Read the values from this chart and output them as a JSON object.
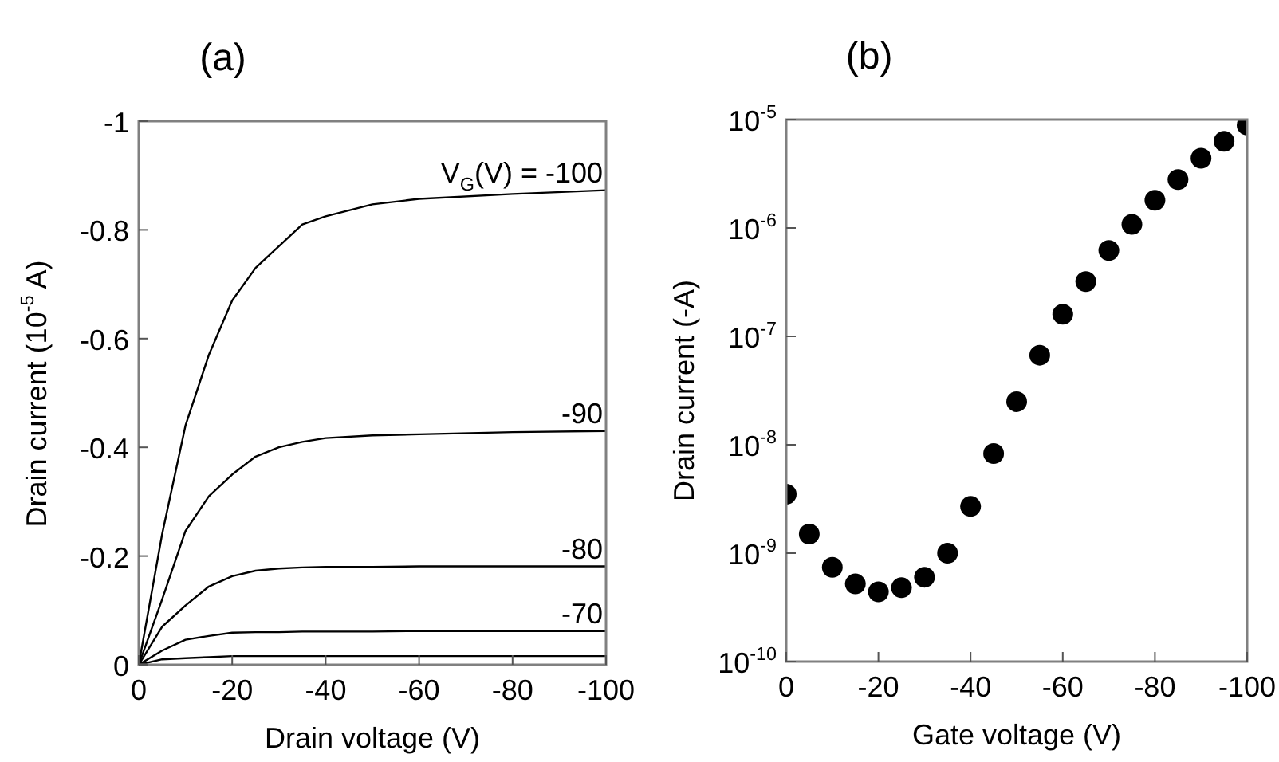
{
  "chart_data": [
    {
      "type": "line",
      "title": "(a)",
      "xlabel": "Drain voltage (V)",
      "ylabel": "Drain current (10$^{-5}$ A)",
      "x": [
        0,
        -5,
        -10,
        -15,
        -20,
        -25,
        -30,
        -35,
        -40,
        -50,
        -60,
        -80,
        -100
      ],
      "series": [
        {
          "name": "V$_{G}$(V) = -100",
          "color": "#000000",
          "values": [
            0,
            -0.24,
            -0.44,
            -0.57,
            -0.67,
            -0.73,
            -0.77,
            -0.81,
            -0.825,
            -0.847,
            -0.857,
            -0.866,
            -0.873
          ]
        },
        {
          "name": "-90",
          "color": "#000000",
          "values": [
            0,
            -0.12,
            -0.246,
            -0.31,
            -0.35,
            -0.383,
            -0.4,
            -0.41,
            -0.417,
            -0.422,
            -0.424,
            -0.428,
            -0.43
          ]
        },
        {
          "name": "-80",
          "color": "#000000",
          "values": [
            0,
            -0.07,
            -0.109,
            -0.144,
            -0.163,
            -0.173,
            -0.177,
            -0.179,
            -0.18,
            -0.18,
            -0.181,
            -0.181,
            -0.181
          ]
        },
        {
          "name": "-70",
          "color": "#000000",
          "values": [
            0,
            -0.026,
            -0.046,
            -0.053,
            -0.059,
            -0.06,
            -0.06,
            -0.061,
            -0.061,
            -0.061,
            -0.062,
            -0.062,
            -0.062
          ]
        },
        {
          "color": "#000000",
          "values": [
            0,
            -0.01,
            -0.012,
            -0.014,
            -0.016,
            -0.016,
            -0.016,
            -0.016,
            -0.016,
            -0.016,
            -0.016,
            -0.016,
            -0.016
          ]
        }
      ],
      "xlim": [
        0,
        -100
      ],
      "ylim": [
        0,
        -1
      ],
      "xticks": [
        0,
        -20,
        -40,
        -60,
        -80,
        -100
      ],
      "yticks": [
        0,
        -0.2,
        -0.4,
        -0.6,
        -0.8,
        -1
      ],
      "marker": "none"
    },
    {
      "type": "scatter",
      "title": "(b)",
      "xlabel": "Gate voltage (V)",
      "ylabel": "Drain current (-A)",
      "x": [
        0,
        -5,
        -10,
        -15,
        -20,
        -25,
        -30,
        -35,
        -40,
        -45,
        -50,
        -55,
        -60,
        -65,
        -70,
        -75,
        -80,
        -85,
        -90,
        -95,
        -100
      ],
      "series": [
        {
          "color": "#000000",
          "values": [
            3.5e-09,
            1.5e-09,
            7.4e-10,
            5.2e-10,
            4.4e-10,
            4.8e-10,
            6e-10,
            1e-09,
            2.7e-09,
            8.3e-09,
            2.5e-08,
            6.7e-08,
            1.6e-07,
            3.2e-07,
            6.2e-07,
            1.08e-06,
            1.8e-06,
            2.8e-06,
            4.4e-06,
            6.3e-06,
            8.9e-06
          ]
        }
      ],
      "xlim": [
        0,
        -100
      ],
      "ylim": [
        1e-10,
        1e-05
      ],
      "log": "y",
      "xticks": [
        0,
        -20,
        -40,
        -60,
        -80,
        -100
      ],
      "yticks": [
        {
          "value": 1e-10,
          "label": "10$^{-10}$"
        },
        {
          "value": 1e-09,
          "label": "10$^{-9}$"
        },
        {
          "value": 1e-08,
          "label": "10$^{-8}$"
        },
        {
          "value": 1e-07,
          "label": "10$^{-7}$"
        },
        {
          "value": 1e-06,
          "label": "10$^{-6}$"
        },
        {
          "value": 1e-05,
          "label": "10$^{-5}$"
        }
      ],
      "marker": "circle"
    }
  ]
}
